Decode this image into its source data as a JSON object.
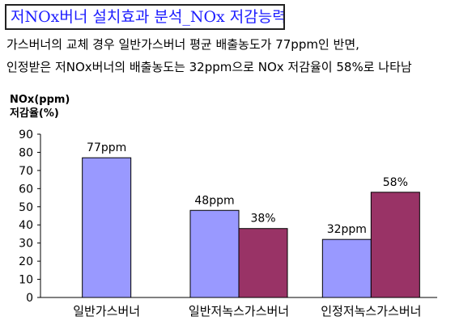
{
  "header": {
    "title": "저NOx버너 설치효과 분석_NOx 저감능력"
  },
  "description": {
    "line1": "가스버너의 교체 경우 일반가스버너 평균 배출농도가 77ppm인 반면,",
    "line2": "인정받은 저NOx버너의 배출농도는 32ppm으로 NOx 저감율이 58%로 나타남"
  },
  "chart_data": {
    "type": "bar",
    "title": "",
    "ylabel_line1": "NOx(ppm)",
    "ylabel_line2": "저감율(%)",
    "xlabel": "",
    "ylim": [
      0,
      90
    ],
    "yticks": [
      0,
      10,
      20,
      30,
      40,
      50,
      60,
      70,
      80,
      90
    ],
    "categories": [
      "일반가스버너",
      "일반저녹스가스버너",
      "인정저녹스가스버너"
    ],
    "series": [
      {
        "color": "#9999ff",
        "values": [
          77,
          48,
          32
        ],
        "labels": [
          "77ppm",
          "48ppm",
          "32ppm"
        ]
      },
      {
        "color": "#993366",
        "values": [
          null,
          38,
          58
        ],
        "labels": [
          "",
          "38%",
          "58%"
        ]
      }
    ],
    "grid": false,
    "legend": "none"
  }
}
